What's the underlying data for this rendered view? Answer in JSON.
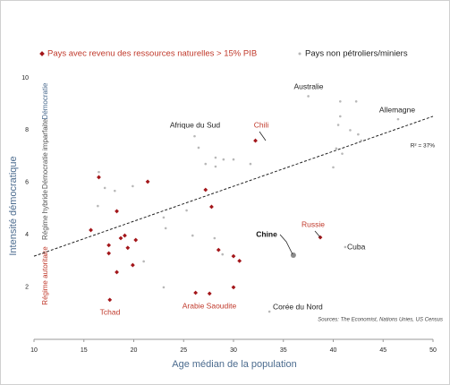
{
  "chart_data": {
    "type": "scatter",
    "legend": "top",
    "xlabel": "Age médian de la population",
    "ylabel": "Intensité démocratique",
    "xlim": [
      10,
      50
    ],
    "xticks": [
      10,
      15,
      20,
      25,
      30,
      35,
      40,
      45,
      50
    ],
    "ylim": [
      0,
      10
    ],
    "yticks": [
      2,
      4,
      6,
      8,
      10
    ],
    "series": [
      {
        "name": "Pays avec revenu des ressources naturelles > 15% PIB",
        "color": "#a3161a",
        "x": [
          16.5,
          21.4,
          15.7,
          18.3,
          18.7,
          19.1,
          20.2,
          17.5,
          17.5,
          19.4,
          18.3,
          19.9,
          17.6,
          27.2,
          27.8,
          28.5,
          30.0,
          30.6,
          26.2,
          27.6,
          30.0,
          32.2,
          38.7
        ],
        "values": [
          6.2,
          6.03,
          4.18,
          4.9,
          3.87,
          3.97,
          3.8,
          3.6,
          3.29,
          3.5,
          2.57,
          2.84,
          1.51,
          5.72,
          5.07,
          3.42,
          3.18,
          3.0,
          1.78,
          1.75,
          1.99,
          7.6,
          3.9
        ]
      },
      {
        "name": "Pays non pétroliers/miniers",
        "color": "#b8b8b8",
        "x": [
          37.5,
          40.7,
          42.3,
          40.7,
          40.5,
          41.7,
          42.5,
          46.5,
          42.8,
          40.3,
          40.0,
          40.9,
          16.5,
          17.1,
          18.1,
          19.9,
          21.0,
          16.4,
          23.0,
          23.2,
          23.0,
          26.1,
          26.5,
          27.2,
          28.2,
          28.2,
          29.0,
          30.0,
          25.3,
          25.9,
          28.1,
          28.9,
          31.7,
          36.0,
          41.2,
          33.6
        ],
        "values": [
          9.3,
          9.1,
          9.1,
          8.53,
          8.2,
          8.0,
          7.84,
          8.42,
          7.6,
          7.3,
          6.58,
          7.1,
          6.4,
          5.79,
          5.68,
          5.86,
          2.98,
          5.1,
          4.66,
          4.25,
          1.99,
          7.77,
          7.33,
          6.71,
          6.95,
          6.61,
          6.88,
          6.88,
          4.93,
          3.97,
          3.87,
          3.25,
          6.71,
          3.22,
          3.53,
          1.06
        ]
      }
    ],
    "trendline": {
      "x": [
        10,
        50
      ],
      "values": [
        3.18,
        8.53
      ],
      "label": "R² = 37%"
    },
    "annotations": [
      "Australie",
      "Allemagne",
      "Afrique du Sud",
      "Chili",
      "Chine",
      "Russie",
      "Cuba",
      "Corée du Nord",
      "Tchad",
      "Arabie Saoudite"
    ],
    "regime_labels": [
      "Démocratie",
      "Démocratie imparfaite",
      "Régime hybride",
      "Régime autoritaire"
    ],
    "source": "Sources: The Economist, Nations Unies, US Census"
  }
}
